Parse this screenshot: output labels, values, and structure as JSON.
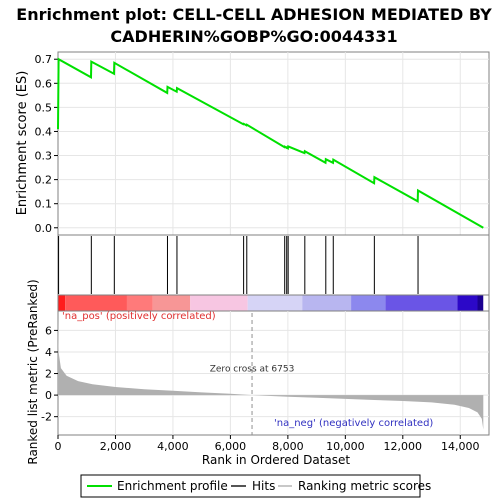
{
  "chart_data": {
    "type": "line",
    "title_lines": [
      "Enrichment plot: CELL-CELL ADHESION MEDIATED BY",
      "CADHERIN%GOBP%GO:0044331"
    ],
    "ylabel_es": "Enrichment score (ES)",
    "ylabel_metric": "Ranked list metric (PreRanked)",
    "xlabel": "Rank in Ordered Dataset",
    "x_ticks": [
      0,
      2000,
      4000,
      6000,
      8000,
      10000,
      12000,
      14000
    ],
    "x_tick_labels": [
      "0",
      "2,000",
      "4,000",
      "6,000",
      "8,000",
      "10,000",
      "12,000",
      "14,000"
    ],
    "xlim": [
      0,
      15000
    ],
    "es_ylim": [
      -0.03,
      0.73
    ],
    "es_ticks": [
      0.0,
      0.1,
      0.2,
      0.3,
      0.4,
      0.5,
      0.6,
      0.7
    ],
    "es_tick_labels": [
      "0.0",
      "0.1",
      "0.2",
      "0.3",
      "0.4",
      "0.5",
      "0.6",
      "0.7"
    ],
    "metric_ylim": [
      -3.7,
      7.8
    ],
    "metric_ticks": [
      -2,
      0,
      2,
      4,
      6
    ],
    "metric_tick_labels": [
      "-2",
      "0",
      "2",
      "4",
      "6"
    ],
    "es_curve": [
      [
        0,
        0.41
      ],
      [
        20,
        0.7
      ],
      [
        1150,
        0.625
      ],
      [
        1160,
        0.69
      ],
      [
        1950,
        0.64
      ],
      [
        1960,
        0.685
      ],
      [
        3800,
        0.56
      ],
      [
        3810,
        0.585
      ],
      [
        4130,
        0.565
      ],
      [
        4140,
        0.58
      ],
      [
        6450,
        0.43
      ],
      [
        6460,
        0.432
      ],
      [
        6560,
        0.425
      ],
      [
        6570,
        0.428
      ],
      [
        7880,
        0.335
      ],
      [
        7890,
        0.337
      ],
      [
        7950,
        0.332
      ],
      [
        7960,
        0.334
      ],
      [
        8000,
        0.33
      ],
      [
        8010,
        0.338
      ],
      [
        8580,
        0.31
      ],
      [
        8590,
        0.318
      ],
      [
        9310,
        0.27
      ],
      [
        9320,
        0.285
      ],
      [
        9570,
        0.27
      ],
      [
        9580,
        0.283
      ],
      [
        11000,
        0.185
      ],
      [
        11010,
        0.21
      ],
      [
        12520,
        0.11
      ],
      [
        12530,
        0.155
      ],
      [
        14800,
        0.0
      ]
    ],
    "hits": [
      20,
      1160,
      1960,
      3810,
      4140,
      6460,
      6570,
      7890,
      7960,
      8010,
      8590,
      9320,
      9580,
      11010,
      12530
    ],
    "metric_curve": [
      [
        0,
        7.3
      ],
      [
        20,
        4.0
      ],
      [
        100,
        2.5
      ],
      [
        300,
        1.8
      ],
      [
        700,
        1.3
      ],
      [
        1200,
        1.0
      ],
      [
        2000,
        0.75
      ],
      [
        3000,
        0.55
      ],
      [
        4000,
        0.4
      ],
      [
        5000,
        0.25
      ],
      [
        6000,
        0.12
      ],
      [
        6753,
        0.0
      ],
      [
        8000,
        -0.15
      ],
      [
        9000,
        -0.25
      ],
      [
        10000,
        -0.35
      ],
      [
        11000,
        -0.45
      ],
      [
        12000,
        -0.55
      ],
      [
        13000,
        -0.68
      ],
      [
        13800,
        -0.9
      ],
      [
        14300,
        -1.2
      ],
      [
        14600,
        -1.6
      ],
      [
        14750,
        -2.2
      ],
      [
        14800,
        -3.2
      ]
    ],
    "color_band": [
      {
        "from": 0,
        "to": 250,
        "color": "#ff1c1c"
      },
      {
        "from": 250,
        "to": 2400,
        "color": "#ff5a5a"
      },
      {
        "from": 2400,
        "to": 3300,
        "color": "#ff7a7a"
      },
      {
        "from": 3300,
        "to": 4600,
        "color": "#f79696"
      },
      {
        "from": 4600,
        "to": 6600,
        "color": "#f7c6e2"
      },
      {
        "from": 6600,
        "to": 8500,
        "color": "#d6d4f6"
      },
      {
        "from": 8500,
        "to": 10200,
        "color": "#b8b6f0"
      },
      {
        "from": 10200,
        "to": 11400,
        "color": "#8c88ee"
      },
      {
        "from": 11400,
        "to": 13900,
        "color": "#6a55e6"
      },
      {
        "from": 13900,
        "to": 14600,
        "color": "#2c08c8"
      },
      {
        "from": 14600,
        "to": 14800,
        "color": "#1a0090"
      }
    ],
    "zero_cross": 6753,
    "zero_cross_label": "Zero cross at 6753",
    "pos_label": "'na_pos' (positively correlated)",
    "neg_label": "'na_neg' (negatively correlated)",
    "legend": [
      "Enrichment profile",
      "Hits",
      "Ranking metric scores"
    ],
    "colors": {
      "es": "#00e000",
      "hits": "#000000",
      "metric": "#b0b0b0",
      "pos_text": "#e03030",
      "neg_text": "#3030c0"
    }
  }
}
